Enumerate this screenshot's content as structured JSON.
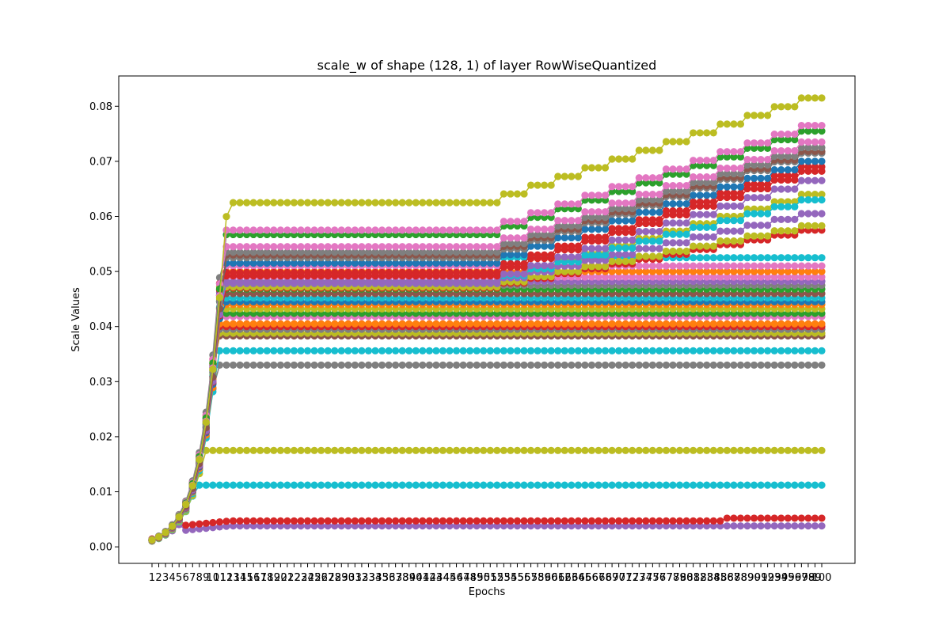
{
  "chart_data": {
    "type": "line",
    "title": "scale_w of shape (128, 1) of layer RowWiseQuantized",
    "xlabel": "Epochs",
    "ylabel": "Scale Values",
    "x_range": [
      1,
      100
    ],
    "ylim": [
      -0.003,
      0.0855
    ],
    "y_ticks": [
      "0.00",
      "0.01",
      "0.02",
      "0.03",
      "0.04",
      "0.05",
      "0.06",
      "0.07",
      "0.08"
    ],
    "grid": false,
    "legend": "none",
    "marker": "circle",
    "palette": [
      "#1f77b4",
      "#ff7f0e",
      "#2ca02c",
      "#d62728",
      "#9467bd",
      "#8c564b",
      "#e377c2",
      "#7f7f7f",
      "#bcbd22",
      "#17becf"
    ],
    "series": [
      {
        "color": "#bcbd22",
        "plateau": 0.0625,
        "end": 0.0815
      },
      {
        "color": "#e377c2",
        "plateau": 0.0575,
        "end": 0.0765
      },
      {
        "color": "#2ca02c",
        "plateau": 0.0567,
        "end": 0.0755
      },
      {
        "color": "#e377c2",
        "plateau": 0.0545,
        "end": 0.0735
      },
      {
        "color": "#7f7f7f",
        "plateau": 0.0535,
        "end": 0.0725
      },
      {
        "color": "#8c564b",
        "plateau": 0.053,
        "end": 0.0718
      },
      {
        "color": "#7f7f7f",
        "plateau": 0.0525,
        "end": 0.0715
      },
      {
        "color": "#1f77b4",
        "plateau": 0.0515,
        "end": 0.07
      },
      {
        "color": "#d62728",
        "plateau": 0.0498,
        "end": 0.069
      },
      {
        "color": "#d62728",
        "plateau": 0.0492,
        "end": 0.0682
      },
      {
        "color": "#9467bd",
        "plateau": 0.048,
        "end": 0.0665
      },
      {
        "color": "#17becf",
        "plateau": 0.048,
        "end": 0.063
      },
      {
        "color": "#bcbd22",
        "plateau": 0.048,
        "end": 0.064
      },
      {
        "color": "#9467bd",
        "plateau": 0.0478,
        "end": 0.0605
      },
      {
        "color": "#bcbd22",
        "plateau": 0.0472,
        "end": 0.0583
      },
      {
        "color": "#d62728",
        "plateau": 0.047,
        "end": 0.0575
      },
      {
        "color": "#17becf",
        "plateau": 0.0525,
        "end": 0.0525
      },
      {
        "color": "#e377c2",
        "plateau": 0.051,
        "end": 0.051
      },
      {
        "color": "#ff7f0e",
        "plateau": 0.05,
        "end": 0.05
      },
      {
        "color": "#e377c2",
        "plateau": 0.049,
        "end": 0.049
      },
      {
        "color": "#9467bd",
        "plateau": 0.0482,
        "end": 0.0482
      },
      {
        "color": "#7f7f7f",
        "plateau": 0.0475,
        "end": 0.0475
      },
      {
        "color": "#2ca02c",
        "plateau": 0.0468,
        "end": 0.0468
      },
      {
        "color": "#8c564b",
        "plateau": 0.046,
        "end": 0.046
      },
      {
        "color": "#17becf",
        "plateau": 0.0452,
        "end": 0.0452
      },
      {
        "color": "#1f77b4",
        "plateau": 0.0445,
        "end": 0.0445
      },
      {
        "color": "#ff7f0e",
        "plateau": 0.044,
        "end": 0.044
      },
      {
        "color": "#bcbd22",
        "plateau": 0.0432,
        "end": 0.0432
      },
      {
        "color": "#2ca02c",
        "plateau": 0.0424,
        "end": 0.0424
      },
      {
        "color": "#e377c2",
        "plateau": 0.0418,
        "end": 0.0418
      },
      {
        "color": "#ff7f0e",
        "plateau": 0.0405,
        "end": 0.0405
      },
      {
        "color": "#d62728",
        "plateau": 0.04,
        "end": 0.04
      },
      {
        "color": "#7f7f7f",
        "plateau": 0.0395,
        "end": 0.0395
      },
      {
        "color": "#bcbd22",
        "plateau": 0.0388,
        "end": 0.0388
      },
      {
        "color": "#8c564b",
        "plateau": 0.0383,
        "end": 0.0383
      },
      {
        "color": "#17becf",
        "plateau": 0.0356,
        "end": 0.0356
      },
      {
        "color": "#7f7f7f",
        "plateau": 0.033,
        "end": 0.033
      },
      {
        "color": "#bcbd22",
        "plateau": 0.0175,
        "end": 0.0175
      },
      {
        "color": "#17becf",
        "plateau": 0.0112,
        "end": 0.0112
      },
      {
        "color": "#d62728",
        "plateau": 0.0047,
        "end": 0.0052
      },
      {
        "color": "#9467bd",
        "plateau": 0.0038,
        "end": 0.0038
      }
    ]
  }
}
